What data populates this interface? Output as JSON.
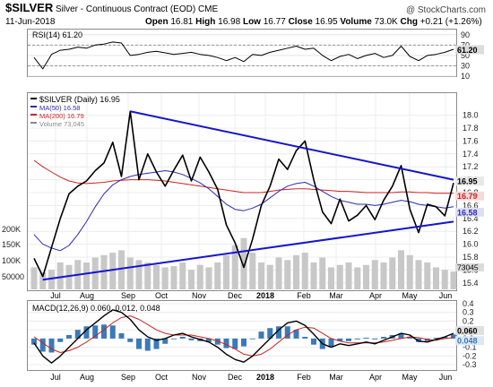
{
  "header": {
    "symbol": "$SILVER",
    "description": "Silver - Continuous Contract (EOD)",
    "exchange": "CME",
    "watermark": "@ StockCharts.com",
    "date": "11-Jun-2018",
    "open_label": "Open",
    "open": "16.81",
    "high_label": "High",
    "high": "16.98",
    "low_label": "Low",
    "low": "16.77",
    "close_label": "Close",
    "close": "16.95",
    "volume_label": "Volume",
    "volume": "73.0K",
    "chg_label": "Chg",
    "chg": "+0.21 (+1.26%)"
  },
  "colors": {
    "price": "#000000",
    "trendline": "#1515cc",
    "ma50": "#2c2cb0",
    "ma200": "#cc2222",
    "volume": "#c8c8c8",
    "rsi": "#000000",
    "macd": "#000000",
    "signal": "#cc2222",
    "histogram": "#3a7ab8"
  },
  "chart_data": [
    {
      "type": "line",
      "panel": "rsi",
      "title": "RSI(14) 61.20",
      "ylim": [
        10,
        100
      ],
      "y_ticks": [
        10,
        30,
        50,
        70,
        90
      ],
      "reference_lines": [
        30,
        70
      ],
      "last_value_label": "61.20",
      "grid": true,
      "values": [
        46,
        24,
        52,
        60,
        62,
        66,
        64,
        70,
        72,
        76,
        74,
        50,
        52,
        56,
        58,
        55,
        52,
        54,
        56,
        52,
        50,
        46,
        40,
        46,
        38,
        52,
        50,
        56,
        60,
        64,
        68,
        62,
        64,
        50,
        40,
        48,
        52,
        44,
        50,
        54,
        46,
        50,
        68,
        48,
        40,
        50,
        52,
        56,
        62
      ]
    },
    {
      "type": "line",
      "panel": "price",
      "legend": [
        {
          "name": "$SILVER (Daily)",
          "value": "16.95"
        },
        {
          "name": "MA(50)",
          "value": "16.58"
        },
        {
          "name": "MA(200)",
          "value": "16.79"
        },
        {
          "name": "Volume",
          "value": "73,045"
        }
      ],
      "ylim": [
        15.3,
        18.3
      ],
      "y_ticks": [
        15.4,
        15.6,
        15.8,
        16.0,
        16.2,
        16.4,
        16.6,
        16.8,
        17.0,
        17.2,
        17.4,
        17.6,
        17.8,
        18.0
      ],
      "x_ticks": [
        "Jul",
        "Aug",
        "Sep",
        "Oct",
        "Nov",
        "Dec",
        "2018",
        "Feb",
        "Mar",
        "Apr",
        "May",
        "Jun"
      ],
      "last_labels": [
        "16.95",
        "16.79",
        "16.58"
      ],
      "volume_ticks": [
        "200K",
        "150K",
        "100K",
        "50000"
      ],
      "volume_last_label": "73045",
      "series": [
        {
          "name": "$SILVER (Daily)",
          "values": [
            15.78,
            15.5,
            15.95,
            16.4,
            16.78,
            16.9,
            16.98,
            17.14,
            17.26,
            17.58,
            17.05,
            18.06,
            17.0,
            17.4,
            17.12,
            16.9,
            17.15,
            17.38,
            16.98,
            17.35,
            17.12,
            16.85,
            16.3,
            16.02,
            15.64,
            16.08,
            16.6,
            16.9,
            17.32,
            17.16,
            17.45,
            17.6,
            17.0,
            16.5,
            16.32,
            16.7,
            16.36,
            16.45,
            16.6,
            16.38,
            16.68,
            16.9,
            17.22,
            16.54,
            16.18,
            16.62,
            16.58,
            16.44,
            16.95
          ]
        },
        {
          "name": "MA(50)",
          "values": [
            16.15,
            16.0,
            15.94,
            15.9,
            15.98,
            16.15,
            16.35,
            16.58,
            16.78,
            16.92,
            17.0,
            17.05,
            17.08,
            17.1,
            17.12,
            17.14,
            17.12,
            17.08,
            17.02,
            16.95,
            16.86,
            16.74,
            16.62,
            16.54,
            16.52,
            16.56,
            16.62,
            16.72,
            16.82,
            16.9,
            16.94,
            16.96,
            16.9,
            16.82,
            16.74,
            16.68,
            16.65,
            16.62,
            16.62,
            16.6,
            16.62,
            16.65,
            16.68,
            16.66,
            16.62,
            16.6,
            16.58,
            16.56,
            16.58
          ]
        },
        {
          "name": "MA(200)",
          "values": [
            17.3,
            17.2,
            17.12,
            17.04,
            16.98,
            16.95,
            16.94,
            16.95,
            16.96,
            16.98,
            16.99,
            17.0,
            17.0,
            17.0,
            16.99,
            16.98,
            16.96,
            16.94,
            16.92,
            16.9,
            16.88,
            16.86,
            16.84,
            16.82,
            16.8,
            16.8,
            16.8,
            16.82,
            16.84,
            16.85,
            16.86,
            16.86,
            16.85,
            16.84,
            16.83,
            16.82,
            16.82,
            16.81,
            16.8,
            16.8,
            16.8,
            16.8,
            16.81,
            16.81,
            16.8,
            16.8,
            16.79,
            16.79,
            16.79
          ]
        },
        {
          "name": "Upper trendline",
          "points": [
            [
              11,
              18.06
            ],
            [
              48,
              17.0
            ]
          ]
        },
        {
          "name": "Lower trendline",
          "points": [
            [
              1,
              15.45
            ],
            [
              48,
              16.35
            ]
          ]
        },
        {
          "name": "Volume",
          "values": [
            90,
            70,
            80,
            110,
            100,
            120,
            110,
            130,
            140,
            150,
            160,
            130,
            120,
            110,
            100,
            90,
            95,
            110,
            80,
            100,
            90,
            110,
            140,
            180,
            210,
            150,
            110,
            100,
            130,
            120,
            140,
            150,
            110,
            130,
            90,
            100,
            110,
            90,
            100,
            120,
            110,
            130,
            160,
            140,
            120,
            110,
            90,
            80,
            73
          ]
        }
      ]
    },
    {
      "type": "line",
      "panel": "macd",
      "title": "MACD(12,26,9) 0.060, 0.012, 0.048",
      "ylim": [
        -0.35,
        0.42
      ],
      "y_ticks": [
        -0.3,
        -0.2,
        -0.1,
        0.0,
        0.1,
        0.2,
        0.3,
        0.4
      ],
      "x_ticks": [
        "Jul",
        "Aug",
        "Sep",
        "Oct",
        "Nov",
        "Dec",
        "2018",
        "Feb",
        "Mar",
        "Apr",
        "May",
        "Jun"
      ],
      "last_labels": [
        "0.060",
        "0.048"
      ],
      "series": [
        {
          "name": "MACD",
          "values": [
            -0.05,
            -0.2,
            -0.28,
            -0.2,
            -0.1,
            0.0,
            0.1,
            0.18,
            0.26,
            0.33,
            0.3,
            0.22,
            0.1,
            0.02,
            -0.02,
            0.0,
            0.04,
            0.06,
            0.02,
            -0.01,
            -0.04,
            -0.1,
            -0.18,
            -0.24,
            -0.27,
            -0.2,
            -0.1,
            0.0,
            0.1,
            0.18,
            0.2,
            0.15,
            0.05,
            -0.06,
            -0.1,
            -0.06,
            -0.08,
            -0.06,
            -0.04,
            -0.06,
            -0.02,
            0.02,
            0.06,
            0.04,
            -0.03,
            -0.04,
            -0.01,
            0.02,
            0.06
          ]
        },
        {
          "name": "Signal",
          "values": [
            0.02,
            -0.05,
            -0.12,
            -0.16,
            -0.14,
            -0.1,
            -0.04,
            0.03,
            0.1,
            0.18,
            0.24,
            0.26,
            0.22,
            0.16,
            0.1,
            0.06,
            0.04,
            0.04,
            0.04,
            0.02,
            0.0,
            -0.03,
            -0.07,
            -0.12,
            -0.18,
            -0.2,
            -0.18,
            -0.12,
            -0.04,
            0.04,
            0.1,
            0.13,
            0.12,
            0.06,
            0.0,
            -0.03,
            -0.05,
            -0.05,
            -0.05,
            -0.05,
            -0.04,
            -0.02,
            0.0,
            0.02,
            0.01,
            -0.01,
            -0.02,
            0.0,
            0.012
          ]
        }
      ]
    }
  ]
}
